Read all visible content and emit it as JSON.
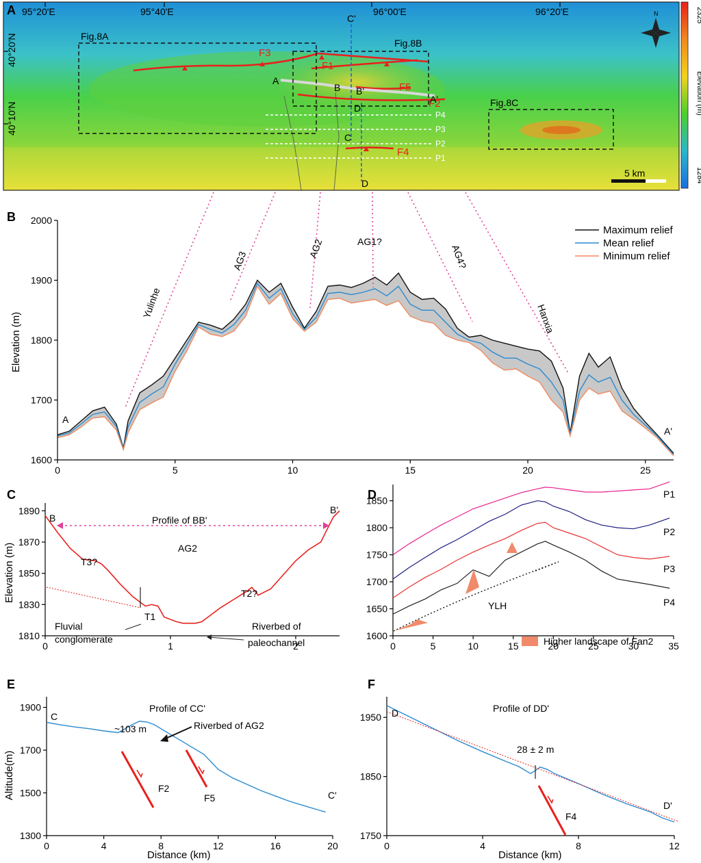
{
  "panel_labels": [
    "A",
    "B",
    "C",
    "D",
    "E",
    "F"
  ],
  "map": {
    "lon_ticks": [
      "95°20'E",
      "95°40'E",
      "96°00'E",
      "96°20'E"
    ],
    "lat_ticks": [
      "40°20'N",
      "40°10'N"
    ],
    "boxes": [
      "Fig.8A",
      "Fig.8B",
      "Fig.8C"
    ],
    "faults": [
      "F1",
      "F2",
      "F3",
      "F4",
      "F5"
    ],
    "profile_points": [
      "A",
      "A'",
      "B",
      "B'",
      "C",
      "C'",
      "D",
      "D'"
    ],
    "parallel_profiles": [
      "P1",
      "P2",
      "P3",
      "P4"
    ],
    "scale_bar": "5 km",
    "north": "N",
    "colorbar": {
      "title": "Elevation (m)",
      "max": "2325",
      "min": "1284",
      "colors": [
        "#e8201c",
        "#f08a1c",
        "#f2d21c",
        "#4ccf2c",
        "#2bb7c9",
        "#1a6fe0"
      ]
    }
  },
  "chart_data": [
    {
      "panel": "B",
      "type": "area",
      "ylabel": "Elevation (m)",
      "xlim": [
        0,
        26.2
      ],
      "ylim": [
        1600,
        2000
      ],
      "xticks": [
        0,
        5,
        10,
        15,
        20,
        25
      ],
      "yticks": [
        1600,
        1700,
        1800,
        1900,
        2000
      ],
      "endpoints": [
        "A",
        "A'"
      ],
      "legend": [
        "Maximum relief",
        "Mean relief",
        "Minimum relief"
      ],
      "legend_position": "top-right",
      "x": [
        0,
        0.5,
        1,
        1.5,
        2,
        2.5,
        2.8,
        3,
        3.5,
        4,
        4.5,
        5,
        5.5,
        6,
        6.5,
        7,
        7.5,
        8,
        8.5,
        9,
        9.5,
        10,
        10.5,
        11,
        11.5,
        12,
        12.5,
        13,
        13.5,
        14,
        14.5,
        15,
        15.5,
        16,
        16.5,
        17,
        17.5,
        18,
        18.5,
        19,
        19.5,
        20,
        20.5,
        21,
        21.5,
        21.8,
        22.2,
        22.6,
        23,
        23.5,
        24,
        24.5,
        25,
        25.5,
        26.2
      ],
      "series": [
        {
          "name": "Maximum relief",
          "values": [
            1642,
            1648,
            1665,
            1682,
            1688,
            1660,
            1620,
            1665,
            1712,
            1725,
            1740,
            1770,
            1800,
            1830,
            1825,
            1818,
            1835,
            1860,
            1900,
            1880,
            1895,
            1855,
            1820,
            1848,
            1890,
            1892,
            1888,
            1895,
            1905,
            1892,
            1912,
            1880,
            1868,
            1870,
            1852,
            1820,
            1805,
            1808,
            1800,
            1795,
            1790,
            1785,
            1782,
            1765,
            1720,
            1645,
            1740,
            1778,
            1755,
            1772,
            1720,
            1686,
            1663,
            1642,
            1611
          ],
          "color": "#111111"
        },
        {
          "name": "Mean relief",
          "values": [
            1640,
            1645,
            1660,
            1676,
            1680,
            1656,
            1619,
            1655,
            1696,
            1710,
            1722,
            1760,
            1792,
            1826,
            1818,
            1812,
            1826,
            1850,
            1895,
            1870,
            1886,
            1844,
            1818,
            1838,
            1878,
            1880,
            1876,
            1880,
            1886,
            1874,
            1890,
            1860,
            1850,
            1850,
            1830,
            1810,
            1800,
            1795,
            1780,
            1770,
            1770,
            1760,
            1752,
            1730,
            1700,
            1643,
            1715,
            1742,
            1730,
            1738,
            1700,
            1676,
            1658,
            1640,
            1609
          ],
          "color": "#2a8ad0"
        },
        {
          "name": "Minimum relief",
          "values": [
            1637,
            1642,
            1655,
            1670,
            1672,
            1650,
            1617,
            1645,
            1684,
            1695,
            1705,
            1748,
            1782,
            1822,
            1810,
            1806,
            1815,
            1840,
            1890,
            1860,
            1878,
            1836,
            1815,
            1830,
            1868,
            1870,
            1862,
            1865,
            1868,
            1858,
            1866,
            1840,
            1832,
            1828,
            1808,
            1800,
            1796,
            1783,
            1762,
            1750,
            1752,
            1740,
            1730,
            1700,
            1680,
            1640,
            1700,
            1720,
            1710,
            1715,
            1682,
            1668,
            1653,
            1637,
            1607
          ],
          "color": "#f08a5d"
        }
      ],
      "annotations": [
        "Yulinhe",
        "AG3",
        "AG2",
        "AG1?",
        "AG4?",
        "Hanxia"
      ]
    },
    {
      "panel": "C",
      "type": "line",
      "title": "Profile of BB'",
      "ylabel": "Elevation (m)",
      "xlim": [
        0,
        2.35
      ],
      "ylim": [
        1810,
        1895
      ],
      "xticks": [
        0,
        1,
        2
      ],
      "yticks": [
        1810,
        1830,
        1850,
        1870,
        1890
      ],
      "endpoints": [
        "B",
        "B'"
      ],
      "x": [
        0,
        0.1,
        0.2,
        0.3,
        0.4,
        0.45,
        0.5,
        0.6,
        0.7,
        0.8,
        0.85,
        0.9,
        0.95,
        1.05,
        1.1,
        1.2,
        1.25,
        1.3,
        1.4,
        1.5,
        1.6,
        1.65,
        1.7,
        1.8,
        1.9,
        2.0,
        2.1,
        2.2,
        2.25,
        2.3,
        2.35
      ],
      "values": [
        1887,
        1876,
        1866,
        1859,
        1858,
        1856,
        1852,
        1843,
        1835,
        1829,
        1830,
        1829,
        1822,
        1819,
        1818,
        1818,
        1819,
        1822,
        1828,
        1833,
        1838,
        1841,
        1836,
        1840,
        1849,
        1858,
        1865,
        1870,
        1878,
        1886,
        1890
      ],
      "annotations": [
        "AG2",
        "T3?",
        "T1",
        "T2?",
        "Fluvial conglomerate",
        "Riverbed of paleochannel"
      ]
    },
    {
      "panel": "D",
      "type": "line",
      "xlim": [
        0,
        35
      ],
      "ylim": [
        1600,
        1880
      ],
      "xticks": [
        0,
        5,
        10,
        15,
        20,
        25,
        30,
        35
      ],
      "yticks": [
        1600,
        1650,
        1700,
        1750,
        1800,
        1850
      ],
      "x": [
        0,
        2,
        4,
        6,
        8,
        10,
        12,
        14,
        16,
        18,
        19,
        20,
        22,
        24,
        26,
        28,
        30,
        32,
        34.5
      ],
      "series": [
        {
          "name": "P1",
          "values": [
            1750,
            1770,
            1788,
            1805,
            1820,
            1835,
            1845,
            1855,
            1865,
            1872,
            1875,
            1874,
            1870,
            1866,
            1866,
            1868,
            1870,
            1872,
            1885
          ],
          "color": "#e8208e"
        },
        {
          "name": "P2",
          "values": [
            1705,
            1726,
            1745,
            1763,
            1778,
            1795,
            1812,
            1825,
            1842,
            1850,
            1848,
            1840,
            1830,
            1815,
            1805,
            1800,
            1798,
            1805,
            1818
          ],
          "color": "#1c1c80"
        },
        {
          "name": "P3",
          "values": [
            1670,
            1690,
            1708,
            1723,
            1740,
            1755,
            1768,
            1780,
            1795,
            1808,
            1810,
            1800,
            1790,
            1780,
            1765,
            1750,
            1745,
            1742,
            1747
          ],
          "color": "#e83030"
        },
        {
          "name": "P4",
          "values": [
            1640,
            1655,
            1668,
            1685,
            1697,
            1722,
            1710,
            1740,
            1755,
            1770,
            1775,
            1768,
            1755,
            1740,
            1720,
            1705,
            1700,
            1695,
            1688
          ],
          "color": "#222222"
        }
      ],
      "legend": [
        "Higher landscape of Fan2"
      ],
      "annotations": [
        "YLH"
      ]
    },
    {
      "panel": "E",
      "type": "line",
      "title": "Profile of CC'",
      "ylabel": "Altitude(m)",
      "xlabel": "Distance (km)",
      "xlim": [
        0,
        20
      ],
      "ylim": [
        1300,
        1950
      ],
      "xticks": [
        0,
        4,
        8,
        12,
        16,
        20
      ],
      "yticks": [
        1300,
        1500,
        1700,
        1900
      ],
      "endpoints": [
        "C",
        "C'"
      ],
      "x": [
        0,
        1,
        2,
        3,
        4,
        5,
        5.5,
        6,
        6.5,
        7,
        7.5,
        8,
        9,
        10,
        11,
        12,
        13,
        14,
        15,
        16,
        17,
        18,
        19,
        19.5
      ],
      "values": [
        1830,
        1818,
        1808,
        1800,
        1790,
        1782,
        1800,
        1820,
        1835,
        1832,
        1820,
        1800,
        1760,
        1720,
        1680,
        1610,
        1570,
        1540,
        1510,
        1485,
        1460,
        1440,
        1420,
        1410
      ],
      "annotations": [
        "~103 m",
        "Riverbed of AG2",
        "F2",
        "F5"
      ]
    },
    {
      "panel": "F",
      "type": "line",
      "title": "Profile of DD'",
      "xlabel": "Distance (km)",
      "xlim": [
        0,
        12
      ],
      "ylim": [
        1750,
        1985
      ],
      "xticks": [
        0,
        4,
        8,
        12
      ],
      "yticks": [
        1750,
        1850,
        1950
      ],
      "endpoints": [
        "D",
        "D'"
      ],
      "x": [
        0,
        1,
        2,
        3,
        4,
        5,
        5.5,
        6,
        6.2,
        6.4,
        6.7,
        7,
        8,
        9,
        10,
        11,
        11.5,
        12
      ],
      "values": [
        1970,
        1950,
        1930,
        1910,
        1892,
        1875,
        1867,
        1855,
        1860,
        1866,
        1862,
        1855,
        1838,
        1820,
        1804,
        1790,
        1780,
        1773
      ],
      "annotations": [
        "28 ± 2 m",
        "F4"
      ]
    }
  ]
}
